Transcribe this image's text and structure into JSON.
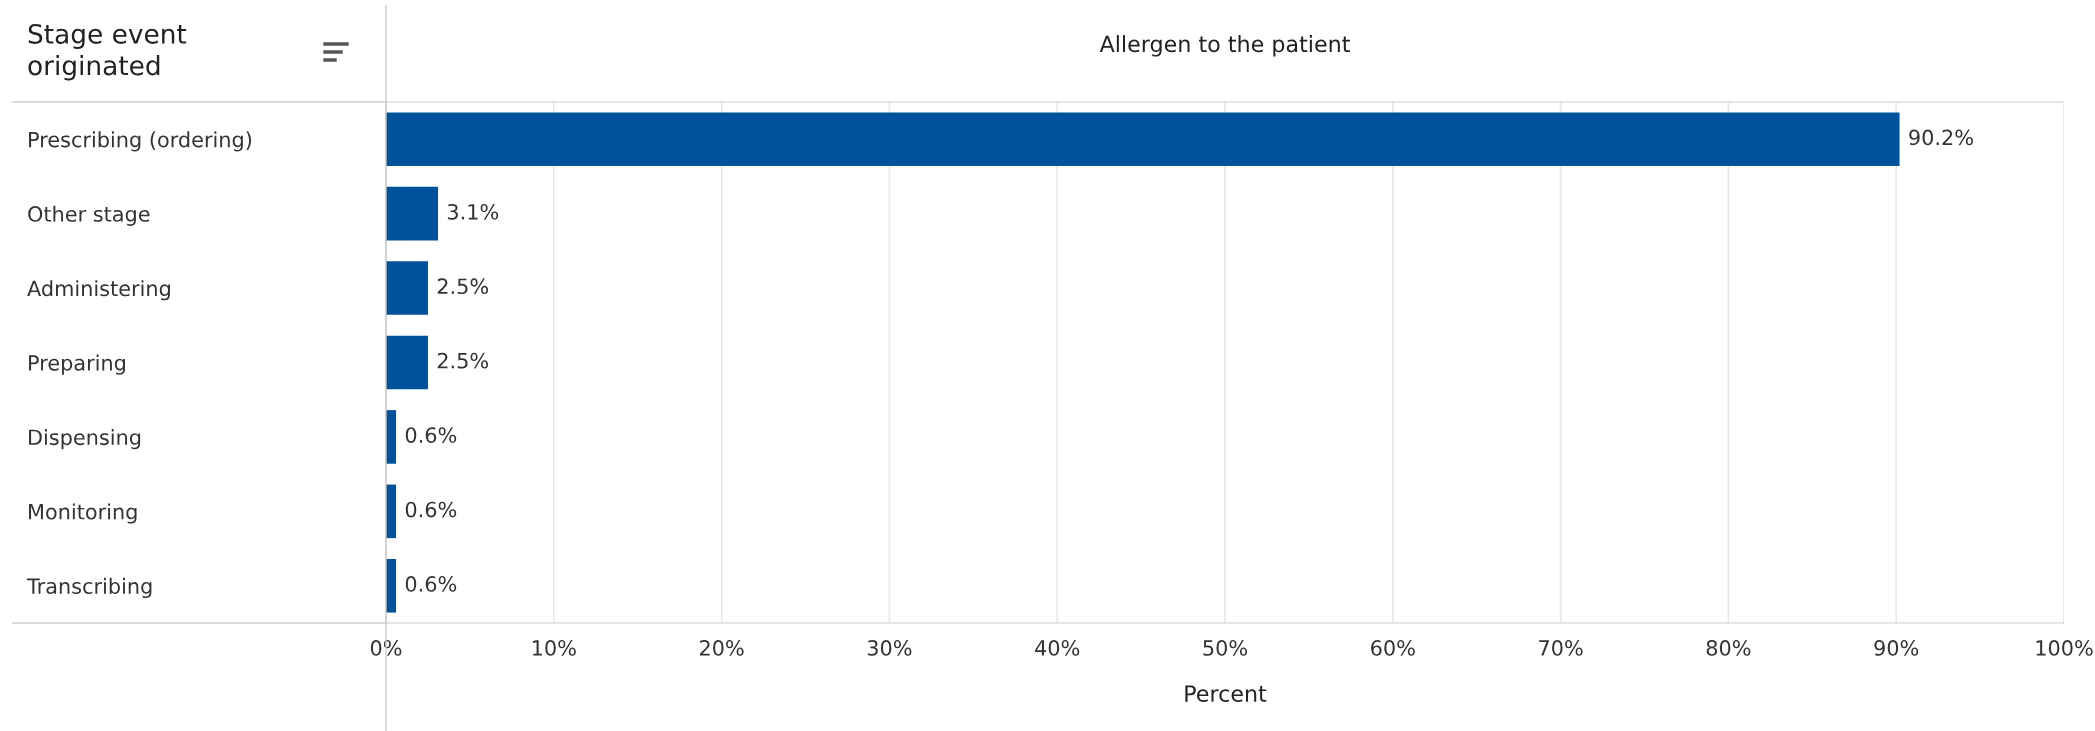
{
  "chart_data": {
    "type": "bar",
    "orientation": "horizontal",
    "title": "Allergen to the patient",
    "ylabel": "Stage event originated",
    "xlabel": "Percent",
    "categories": [
      "Prescribing (ordering)",
      "Other stage",
      "Administering",
      "Preparing",
      "Dispensing",
      "Monitoring",
      "Transcribing"
    ],
    "values": [
      90.2,
      3.1,
      2.5,
      2.5,
      0.6,
      0.6,
      0.6
    ],
    "value_labels": [
      "90.2%",
      "3.1%",
      "2.5%",
      "2.5%",
      "0.6%",
      "0.6%",
      "0.6%"
    ],
    "color": "#00529b",
    "xlim": [
      0,
      100
    ],
    "xticks": [
      {
        "value": 0,
        "label": "0%"
      },
      {
        "value": 10,
        "label": "10%"
      },
      {
        "value": 20,
        "label": "20%"
      },
      {
        "value": 30,
        "label": "30%"
      },
      {
        "value": 40,
        "label": "40%"
      },
      {
        "value": 50,
        "label": "50%"
      },
      {
        "value": 60,
        "label": "60%"
      },
      {
        "value": 70,
        "label": "70%"
      },
      {
        "value": 80,
        "label": "80%"
      },
      {
        "value": 90,
        "label": "90%"
      },
      {
        "value": 100,
        "label": "100%"
      }
    ],
    "grid": "x"
  }
}
